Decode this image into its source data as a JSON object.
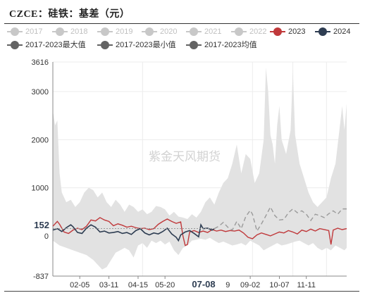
{
  "title": "CZCE：硅铁：基差（元）",
  "watermark": "紫金天风期货",
  "chart_data": {
    "type": "line",
    "y_ticks": [
      "3616",
      "3000",
      "2000",
      "1000",
      "0",
      "-837"
    ],
    "ylim": [
      -837,
      3616
    ],
    "x_ticks": [
      "02-05",
      "03-11",
      "04-15",
      "05-20",
      "07-08",
      "09-02",
      "10-07",
      "11-11"
    ],
    "x_ticks_partial": "9",
    "highlight_x": "07-08",
    "highlight_y": "152",
    "series": [
      {
        "name": "2017",
        "color": "#c8c8c8",
        "active": false
      },
      {
        "name": "2018",
        "color": "#c8c8c8",
        "active": false
      },
      {
        "name": "2019",
        "color": "#c8c8c8",
        "active": false
      },
      {
        "name": "2020",
        "color": "#c8c8c8",
        "active": false
      },
      {
        "name": "2021",
        "color": "#c8c8c8",
        "active": false
      },
      {
        "name": "2022",
        "color": "#c8c8c8",
        "active": false
      },
      {
        "name": "2023",
        "color": "#c0393b",
        "active": true,
        "values": [
          [
            0,
            200
          ],
          [
            2,
            300
          ],
          [
            3,
            240
          ],
          [
            5,
            80
          ],
          [
            7,
            50
          ],
          [
            9,
            120
          ],
          [
            11,
            160
          ],
          [
            13,
            130
          ],
          [
            15,
            200
          ],
          [
            17,
            330
          ],
          [
            19,
            310
          ],
          [
            21,
            380
          ],
          [
            23,
            330
          ],
          [
            25,
            300
          ],
          [
            27,
            210
          ],
          [
            29,
            250
          ],
          [
            31,
            220
          ],
          [
            33,
            180
          ],
          [
            35,
            200
          ],
          [
            37,
            170
          ],
          [
            39,
            150
          ],
          [
            41,
            160
          ],
          [
            43,
            130
          ],
          [
            45,
            150
          ],
          [
            47,
            240
          ],
          [
            49,
            300
          ],
          [
            51,
            350
          ],
          [
            53,
            300
          ],
          [
            55,
            260
          ],
          [
            57,
            290
          ],
          [
            58,
            0
          ],
          [
            59,
            -200
          ],
          [
            60,
            -180
          ],
          [
            61,
            80
          ],
          [
            63,
            110
          ],
          [
            65,
            70
          ],
          [
            67,
            100
          ],
          [
            69,
            70
          ],
          [
            71,
            130
          ],
          [
            73,
            100
          ],
          [
            75,
            120
          ],
          [
            77,
            90
          ],
          [
            79,
            110
          ],
          [
            81,
            100
          ],
          [
            83,
            120
          ],
          [
            85,
            60
          ],
          [
            87,
            -30
          ],
          [
            89,
            -60
          ],
          [
            91,
            20
          ],
          [
            93,
            60
          ],
          [
            95,
            30
          ],
          [
            97,
            0
          ],
          [
            99,
            40
          ],
          [
            101,
            80
          ],
          [
            103,
            60
          ],
          [
            105,
            110
          ],
          [
            107,
            80
          ],
          [
            109,
            40
          ],
          [
            111,
            120
          ],
          [
            113,
            90
          ],
          [
            115,
            140
          ],
          [
            117,
            100
          ],
          [
            119,
            150
          ],
          [
            121,
            130
          ],
          [
            123,
            110
          ],
          [
            124,
            -180
          ],
          [
            125,
            120
          ],
          [
            127,
            160
          ],
          [
            129,
            130
          ],
          [
            131,
            150
          ]
        ]
      },
      {
        "name": "2024",
        "color": "#2e3d52",
        "active": true,
        "values": [
          [
            0,
            120
          ],
          [
            2,
            150
          ],
          [
            4,
            90
          ],
          [
            6,
            170
          ],
          [
            8,
            230
          ],
          [
            9,
            190
          ],
          [
            11,
            70
          ],
          [
            13,
            50
          ],
          [
            15,
            160
          ],
          [
            17,
            230
          ],
          [
            19,
            180
          ],
          [
            21,
            80
          ],
          [
            23,
            100
          ],
          [
            25,
            60
          ],
          [
            27,
            70
          ],
          [
            29,
            90
          ],
          [
            31,
            50
          ],
          [
            33,
            70
          ],
          [
            35,
            30
          ],
          [
            37,
            110
          ],
          [
            39,
            150
          ],
          [
            41,
            60
          ],
          [
            43,
            20
          ],
          [
            45,
            60
          ],
          [
            47,
            40
          ],
          [
            49,
            90
          ],
          [
            51,
            160
          ],
          [
            53,
            40
          ],
          [
            55,
            -30
          ],
          [
            56,
            -100
          ],
          [
            57,
            20
          ],
          [
            59,
            80
          ],
          [
            61,
            110
          ],
          [
            63,
            50
          ],
          [
            65,
            -20
          ],
          [
            66,
            230
          ],
          [
            67,
            150
          ],
          [
            69,
            160
          ],
          [
            71,
            120
          ],
          [
            72,
            152
          ]
        ]
      },
      {
        "name": "2017-2023最大值",
        "color": "#636363",
        "active": true,
        "values": [
          [
            72,
            150
          ],
          [
            74,
            200
          ],
          [
            76,
            280
          ],
          [
            78,
            180
          ],
          [
            80,
            120
          ],
          [
            82,
            300
          ],
          [
            84,
            150
          ],
          [
            86,
            400
          ],
          [
            88,
            530
          ],
          [
            89,
            450
          ],
          [
            91,
            100
          ],
          [
            93,
            250
          ],
          [
            95,
            420
          ],
          [
            97,
            600
          ],
          [
            99,
            420
          ],
          [
            101,
            330
          ],
          [
            103,
            340
          ],
          [
            105,
            480
          ],
          [
            107,
            560
          ],
          [
            109,
            480
          ],
          [
            111,
            520
          ],
          [
            113,
            450
          ],
          [
            115,
            320
          ],
          [
            117,
            450
          ],
          [
            119,
            420
          ],
          [
            121,
            380
          ],
          [
            123,
            460
          ],
          [
            125,
            520
          ],
          [
            127,
            450
          ],
          [
            129,
            560
          ],
          [
            131,
            560
          ]
        ]
      },
      {
        "name": "2017-2023最小值",
        "color": "#636363",
        "active": true,
        "values": []
      },
      {
        "name": "2017-2023均值",
        "color": "#636363",
        "active": true,
        "values": []
      }
    ]
  }
}
